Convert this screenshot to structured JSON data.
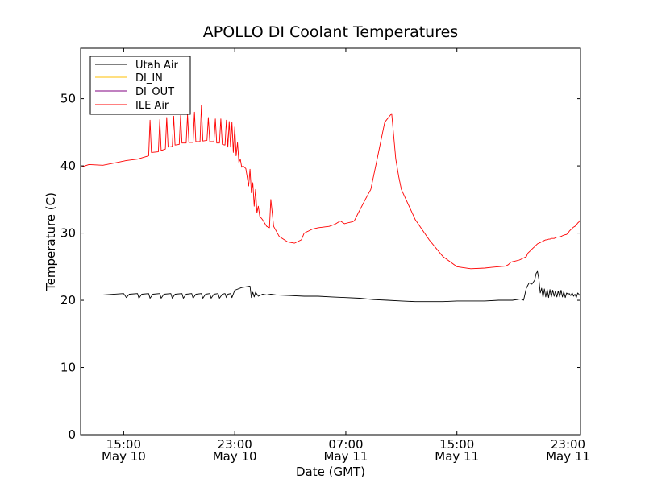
{
  "chart_data": {
    "type": "line",
    "title": "APOLLO DI Coolant Temperatures",
    "xlabel": "Date (GMT)",
    "ylabel": "Temperature (C)",
    "x_unit": "hours since 00:00 May 10 (GMT)",
    "xlim": [
      11.9,
      47.9
    ],
    "ylim": [
      0,
      57.5
    ],
    "yticks": [
      0,
      10,
      20,
      30,
      40,
      50
    ],
    "xticks": [
      {
        "value": 15,
        "time": "15:00",
        "date": "May 10"
      },
      {
        "value": 23,
        "time": "23:00",
        "date": "May 10"
      },
      {
        "value": 31,
        "time": "07:00",
        "date": "May 11"
      },
      {
        "value": 39,
        "time": "15:00",
        "date": "May 11"
      },
      {
        "value": 47,
        "time": "23:00",
        "date": "May 11"
      }
    ],
    "grid": false,
    "legend_position": "top-left",
    "series": [
      {
        "name": "Utah Air",
        "color": "#000000",
        "x": [
          11.9,
          13.5,
          15.0,
          15.2,
          15.4,
          16.0,
          16.1,
          16.3,
          16.8,
          16.9,
          17.1,
          17.6,
          17.7,
          17.9,
          18.4,
          18.5,
          18.7,
          19.2,
          19.3,
          19.5,
          19.9,
          20.0,
          20.2,
          20.6,
          20.7,
          20.9,
          21.2,
          21.3,
          21.5,
          21.8,
          21.9,
          22.1,
          22.3,
          22.4,
          22.5,
          22.7,
          22.8,
          23.0,
          23.5,
          24.1,
          24.2,
          24.3,
          24.4,
          24.5,
          24.7,
          25.0,
          25.3,
          25.6,
          26.0,
          27.0,
          28.0,
          29.0,
          30.0,
          31.0,
          32.0,
          33.0,
          34.0,
          35.0,
          36.0,
          37.0,
          38.0,
          39.0,
          40.0,
          41.0,
          42.0,
          43.0,
          43.6,
          43.8,
          44.0,
          44.2,
          44.4,
          44.6,
          44.7,
          44.8,
          44.9,
          45.0,
          45.1,
          45.2,
          45.3,
          45.4,
          45.5,
          45.6,
          45.7,
          45.8,
          45.9,
          46.0,
          46.1,
          46.2,
          46.3,
          46.4,
          46.5,
          46.6,
          46.7,
          46.8,
          46.9,
          47.0,
          47.1,
          47.2,
          47.3,
          47.4,
          47.5,
          47.6,
          47.7,
          47.9
        ],
        "y": [
          20.8,
          20.8,
          21.0,
          20.4,
          20.9,
          21.0,
          20.3,
          20.9,
          21.0,
          20.3,
          20.9,
          21.0,
          20.3,
          20.9,
          21.0,
          20.3,
          20.9,
          21.0,
          20.3,
          20.9,
          21.0,
          20.3,
          20.9,
          21.0,
          20.3,
          20.9,
          21.0,
          20.3,
          20.9,
          21.0,
          20.3,
          20.9,
          21.0,
          20.4,
          20.9,
          21.0,
          20.4,
          21.5,
          21.9,
          22.1,
          20.4,
          21.2,
          20.5,
          21.2,
          20.6,
          20.9,
          20.8,
          20.9,
          20.8,
          20.7,
          20.6,
          20.6,
          20.5,
          20.4,
          20.3,
          20.1,
          20.0,
          19.9,
          19.8,
          19.8,
          19.8,
          19.9,
          19.9,
          19.9,
          20.0,
          20.0,
          20.2,
          20.0,
          21.8,
          22.6,
          22.4,
          23.0,
          24.0,
          24.3,
          23.2,
          21.1,
          21.8,
          20.4,
          21.7,
          20.5,
          21.6,
          20.4,
          21.6,
          20.5,
          21.5,
          20.6,
          21.4,
          20.5,
          21.4,
          20.5,
          21.5,
          20.5,
          21.3,
          20.4,
          21.1,
          20.9,
          21.0,
          20.7,
          21.1,
          20.6,
          20.9,
          20.4,
          21.1,
          20.6
        ]
      },
      {
        "name": "DI_IN",
        "color": "#ffbf00",
        "x": [],
        "y": []
      },
      {
        "name": "DI_OUT",
        "color": "#800080",
        "x": [],
        "y": []
      },
      {
        "name": "ILE Air",
        "color": "#ff0000",
        "x": [
          11.9,
          12.5,
          13.5,
          14.5,
          15.2,
          16.0,
          16.8,
          16.9,
          17.0,
          17.5,
          17.6,
          17.7,
          18.0,
          18.1,
          18.2,
          18.5,
          18.6,
          18.7,
          19.0,
          19.1,
          19.2,
          19.5,
          19.6,
          19.7,
          20.0,
          20.1,
          20.2,
          20.5,
          20.6,
          20.7,
          21.0,
          21.1,
          21.2,
          21.5,
          21.6,
          21.7,
          21.9,
          22.0,
          22.1,
          22.3,
          22.4,
          22.5,
          22.6,
          22.7,
          22.8,
          22.9,
          23.0,
          23.1,
          23.2,
          23.3,
          23.4,
          23.5,
          23.6,
          23.7,
          23.8,
          24.0,
          24.1,
          24.2,
          24.3,
          24.4,
          24.5,
          24.6,
          24.7,
          24.8,
          25.0,
          25.3,
          25.5,
          25.6,
          25.8,
          26.2,
          26.8,
          27.3,
          27.8,
          28.0,
          28.3,
          28.6,
          29.0,
          29.4,
          29.8,
          30.2,
          30.6,
          30.9,
          31.1,
          31.3,
          31.5,
          31.6,
          31.7,
          31.8,
          31.9,
          32.1,
          32.4,
          32.8,
          33.3,
          33.8,
          34.3,
          34.6,
          34.8,
          35.0,
          36.0,
          37.0,
          38.0,
          39.0,
          40.0,
          41.0,
          41.5,
          42.0,
          42.5,
          42.7,
          42.8,
          42.9,
          43.5,
          44.0,
          44.1,
          44.2,
          44.3,
          44.4,
          44.5,
          44.6,
          44.7,
          44.8,
          44.9,
          45.0,
          45.1,
          45.2,
          45.3,
          45.4,
          45.5,
          45.6,
          45.7,
          45.8,
          46.0,
          46.1,
          46.2,
          46.3,
          46.5,
          46.6,
          46.7,
          46.9,
          47.0,
          47.1,
          47.3,
          47.4,
          47.5,
          47.6,
          47.7,
          47.8,
          47.9
        ],
        "y": [
          39.8,
          40.2,
          40.1,
          40.5,
          40.8,
          41.0,
          41.5,
          46.8,
          42.0,
          42.1,
          46.9,
          42.3,
          42.5,
          47.2,
          42.8,
          42.9,
          47.4,
          43.1,
          43.2,
          47.5,
          43.4,
          43.4,
          47.6,
          43.5,
          43.5,
          48.0,
          43.6,
          43.6,
          49.0,
          43.7,
          43.8,
          47.2,
          43.6,
          43.6,
          47.0,
          43.4,
          43.4,
          47.0,
          43.2,
          43.1,
          46.8,
          42.8,
          46.6,
          42.8,
          46.5,
          42.0,
          45.8,
          41.5,
          43.5,
          40.5,
          41.0,
          39.8,
          40.0,
          39.8,
          39.6,
          37.0,
          39.5,
          36.0,
          37.5,
          34.0,
          36.5,
          33.0,
          34.0,
          32.5,
          32.0,
          31.0,
          30.8,
          35.0,
          31.0,
          29.5,
          28.7,
          28.5,
          29.0,
          30.0,
          30.3,
          30.6,
          30.8,
          30.9,
          31.0,
          31.3,
          31.8,
          31.4,
          31.5,
          31.6,
          31.7,
          31.8,
          32.2,
          32.6,
          33.0,
          33.8,
          35.0,
          36.5,
          41.5,
          46.5,
          47.8,
          41.0,
          38.5,
          36.5,
          32.0,
          29.0,
          26.5,
          25.0,
          24.7,
          24.8,
          24.9,
          25.0,
          25.1,
          25.3,
          25.5,
          25.7,
          26.0,
          26.5,
          27.0,
          27.2,
          27.4,
          27.6,
          27.8,
          28.0,
          28.2,
          28.4,
          28.5,
          28.6,
          28.7,
          28.8,
          28.9,
          29.0,
          29.0,
          29.1,
          29.1,
          29.2,
          29.2,
          29.3,
          29.4,
          29.4,
          29.5,
          29.6,
          29.7,
          29.8,
          30.0,
          30.3,
          30.7,
          30.9,
          31.0,
          31.2,
          31.5,
          31.7,
          32.0
        ]
      }
    ]
  }
}
